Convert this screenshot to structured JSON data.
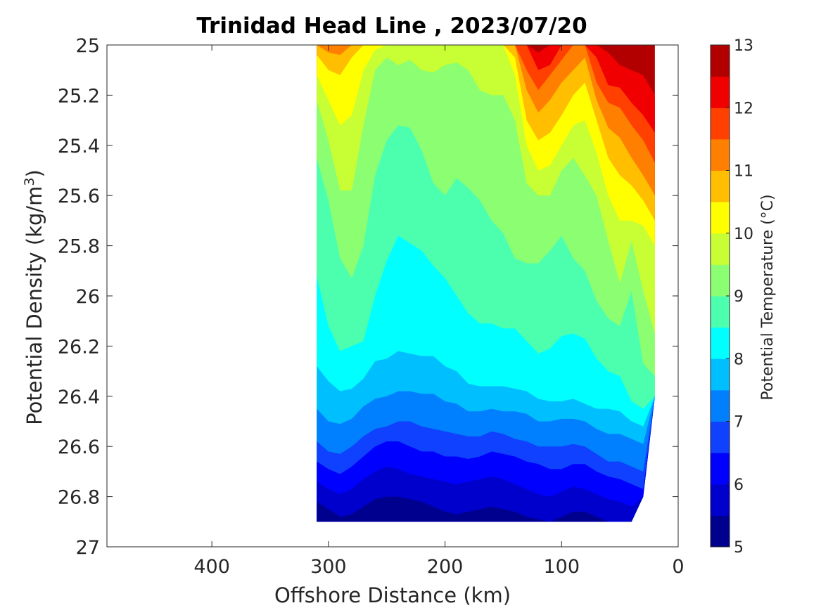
{
  "chart_data": {
    "type": "contour",
    "title": "Trinidad Head Line , 2023/07/20",
    "xlabel": "Offshore Distance (km)",
    "ylabel_prefix": "Potential Density (kg/m",
    "ylabel_superscript": "3",
    "ylabel_suffix": ")",
    "xlim": [
      490,
      0
    ],
    "x_reversed": true,
    "xticks": [
      400,
      300,
      200,
      100,
      0
    ],
    "xtick_labels": [
      "400",
      "300",
      "200",
      "100",
      "0"
    ],
    "ylim": [
      25,
      27
    ],
    "y_reversed": true,
    "yticks": [
      25,
      25.2,
      25.4,
      25.6,
      25.8,
      26,
      26.2,
      26.4,
      26.6,
      26.8,
      27
    ],
    "ytick_labels": [
      "25",
      "25.2",
      "25.4",
      "25.6",
      "25.8",
      "26",
      "26.2",
      "26.4",
      "26.6",
      "26.8",
      "27"
    ],
    "grid": false,
    "colorbar": {
      "label": "Potential Temperature (°C)",
      "range": [
        5,
        13
      ],
      "ticks": [
        5,
        6,
        7,
        8,
        9,
        10,
        11,
        12,
        13
      ],
      "tick_labels": [
        "5",
        "6",
        "7",
        "8",
        "9",
        "10",
        "11",
        "12",
        "13"
      ],
      "levels": [
        5,
        5.5,
        6,
        6.5,
        7,
        7.5,
        8,
        8.5,
        9,
        9.5,
        10,
        10.5,
        11,
        11.5,
        12,
        12.5,
        13
      ],
      "colors": [
        "#00008f",
        "#0000cd",
        "#0000ff",
        "#0f41ff",
        "#0080ff",
        "#00bfff",
        "#00ffff",
        "#4cffaf",
        "#8bff71",
        "#c8ff34",
        "#ffff00",
        "#ffbf00",
        "#ff8000",
        "#ff4000",
        "#f00000",
        "#b20000"
      ]
    },
    "x": [
      310,
      300,
      290,
      280,
      270,
      260,
      250,
      240,
      230,
      220,
      210,
      200,
      190,
      180,
      170,
      160,
      150,
      140,
      130,
      120,
      110,
      100,
      90,
      80,
      70,
      60,
      50,
      40,
      30,
      20
    ],
    "isopleth_levels": [
      12.5,
      12,
      11.5,
      11,
      10.5,
      10,
      9.5,
      9,
      8.5,
      8,
      7.5,
      7,
      6.5,
      6,
      5.5
    ],
    "isopleth_density": [
      [
        25.0,
        25.0,
        25.0,
        25.0,
        25.0,
        25.0,
        25.0,
        25.0,
        25.0,
        25.0,
        25.0,
        25.0,
        25.0,
        25.0,
        25.0,
        25.0,
        25.0,
        25.0,
        25.0,
        25.03,
        25.0,
        25.0,
        25.0,
        25.0,
        25.0,
        25.03,
        25.08,
        25.1,
        25.12,
        25.2
      ],
      [
        25.0,
        25.0,
        25.0,
        25.0,
        25.0,
        25.0,
        25.0,
        25.0,
        25.0,
        25.0,
        25.0,
        25.0,
        25.0,
        25.0,
        25.0,
        25.0,
        25.0,
        25.0,
        25.0,
        25.1,
        25.08,
        25.0,
        25.0,
        25.0,
        25.05,
        25.16,
        25.17,
        25.23,
        25.28,
        25.35
      ],
      [
        25.0,
        25.0,
        25.0,
        25.0,
        25.0,
        25.0,
        25.0,
        25.0,
        25.0,
        25.0,
        25.0,
        25.0,
        25.0,
        25.0,
        25.0,
        25.0,
        25.0,
        25.0,
        25.1,
        25.18,
        25.12,
        25.06,
        25.0,
        25.0,
        25.15,
        25.23,
        25.25,
        25.32,
        25.38,
        25.47
      ],
      [
        25.0,
        25.03,
        25.04,
        25.0,
        25.0,
        25.0,
        25.0,
        25.0,
        25.0,
        25.0,
        25.0,
        25.0,
        25.0,
        25.0,
        25.0,
        25.0,
        25.0,
        25.0,
        25.18,
        25.27,
        25.22,
        25.15,
        25.1,
        25.05,
        25.22,
        25.33,
        25.37,
        25.45,
        25.52,
        25.6
      ],
      [
        25.04,
        25.1,
        25.12,
        25.05,
        25.0,
        25.0,
        25.0,
        25.0,
        25.0,
        25.0,
        25.0,
        25.0,
        25.0,
        25.0,
        25.0,
        25.0,
        25.0,
        25.05,
        25.3,
        25.38,
        25.35,
        25.28,
        25.2,
        25.15,
        25.3,
        25.45,
        25.52,
        25.56,
        25.62,
        25.7
      ],
      [
        25.12,
        25.22,
        25.32,
        25.28,
        25.1,
        25.02,
        25.0,
        25.0,
        25.0,
        25.0,
        25.0,
        25.0,
        25.0,
        25.0,
        25.0,
        25.0,
        25.0,
        25.12,
        25.4,
        25.5,
        25.48,
        25.4,
        25.32,
        25.3,
        25.43,
        25.6,
        25.7,
        25.7,
        25.72,
        25.8
      ],
      [
        25.22,
        25.38,
        25.58,
        25.58,
        25.32,
        25.1,
        25.05,
        25.08,
        25.06,
        25.1,
        25.11,
        25.08,
        25.07,
        25.1,
        25.18,
        25.2,
        25.2,
        25.3,
        25.55,
        25.6,
        25.6,
        25.5,
        25.45,
        25.52,
        25.6,
        25.78,
        25.95,
        25.78,
        25.98,
        26.15
      ],
      [
        25.45,
        25.62,
        25.85,
        25.93,
        25.8,
        25.52,
        25.38,
        25.32,
        25.33,
        25.42,
        25.55,
        25.6,
        25.53,
        25.57,
        25.62,
        25.7,
        25.75,
        25.85,
        25.87,
        25.87,
        25.82,
        25.76,
        25.85,
        25.9,
        26.02,
        26.09,
        26.12,
        25.98,
        26.27,
        26.32
      ],
      [
        25.92,
        26.12,
        26.22,
        26.2,
        26.18,
        26.0,
        25.86,
        25.76,
        25.79,
        25.82,
        25.88,
        25.93,
        26.0,
        26.07,
        26.11,
        26.11,
        26.13,
        26.13,
        26.18,
        26.23,
        26.21,
        26.16,
        26.15,
        26.17,
        26.25,
        26.3,
        26.32,
        26.42,
        26.45,
        26.5
      ],
      [
        26.28,
        26.34,
        26.38,
        26.37,
        26.33,
        26.26,
        26.25,
        26.22,
        26.23,
        26.24,
        26.24,
        26.28,
        26.3,
        26.35,
        26.36,
        26.36,
        26.36,
        26.37,
        26.38,
        26.41,
        26.42,
        26.42,
        26.41,
        26.43,
        26.45,
        26.45,
        26.46,
        26.5,
        26.52,
        26.55
      ],
      [
        26.45,
        26.5,
        26.51,
        26.49,
        26.44,
        26.41,
        26.4,
        26.38,
        26.38,
        26.39,
        26.39,
        26.42,
        26.43,
        26.46,
        26.46,
        26.45,
        26.46,
        26.46,
        26.47,
        26.5,
        26.5,
        26.49,
        26.49,
        26.5,
        26.53,
        26.55,
        26.55,
        26.57,
        26.59,
        26.62
      ],
      [
        26.58,
        26.62,
        26.63,
        26.6,
        26.56,
        26.53,
        26.52,
        26.5,
        26.5,
        26.52,
        26.53,
        26.54,
        26.55,
        26.56,
        26.56,
        26.54,
        26.55,
        26.57,
        26.58,
        26.6,
        26.6,
        26.6,
        26.59,
        26.6,
        26.63,
        26.66,
        26.66,
        26.68,
        26.7,
        26.72
      ],
      [
        26.66,
        26.69,
        26.71,
        26.68,
        26.64,
        26.6,
        26.58,
        26.58,
        26.6,
        26.62,
        26.62,
        26.64,
        26.64,
        26.65,
        26.64,
        26.62,
        26.63,
        26.64,
        26.66,
        26.67,
        26.69,
        26.69,
        26.67,
        26.67,
        26.7,
        26.72,
        26.73,
        26.75,
        26.77,
        26.78
      ],
      [
        26.74,
        26.77,
        26.79,
        26.77,
        26.73,
        26.7,
        26.68,
        26.69,
        26.71,
        26.72,
        26.73,
        26.74,
        26.75,
        26.74,
        26.73,
        26.72,
        26.73,
        26.75,
        26.77,
        26.79,
        26.8,
        26.78,
        26.76,
        26.77,
        26.79,
        26.81,
        26.82,
        26.84,
        26.86,
        26.87
      ],
      [
        26.82,
        26.85,
        26.88,
        26.87,
        26.84,
        26.81,
        26.8,
        26.8,
        26.81,
        26.82,
        26.84,
        26.86,
        26.87,
        26.86,
        26.85,
        26.84,
        26.85,
        26.86,
        26.88,
        26.89,
        26.9,
        26.88,
        26.86,
        26.86,
        26.88,
        26.9,
        26.9,
        26.9,
        26.9,
        26.9
      ]
    ],
    "bottom_boundary": [
      26.9,
      26.9,
      26.9,
      26.9,
      26.9,
      26.9,
      26.9,
      26.9,
      26.9,
      26.9,
      26.9,
      26.9,
      26.9,
      26.9,
      26.9,
      26.9,
      26.9,
      26.9,
      26.9,
      26.9,
      26.9,
      26.9,
      26.9,
      26.9,
      26.9,
      26.9,
      26.9,
      26.9,
      26.8,
      26.4
    ]
  }
}
